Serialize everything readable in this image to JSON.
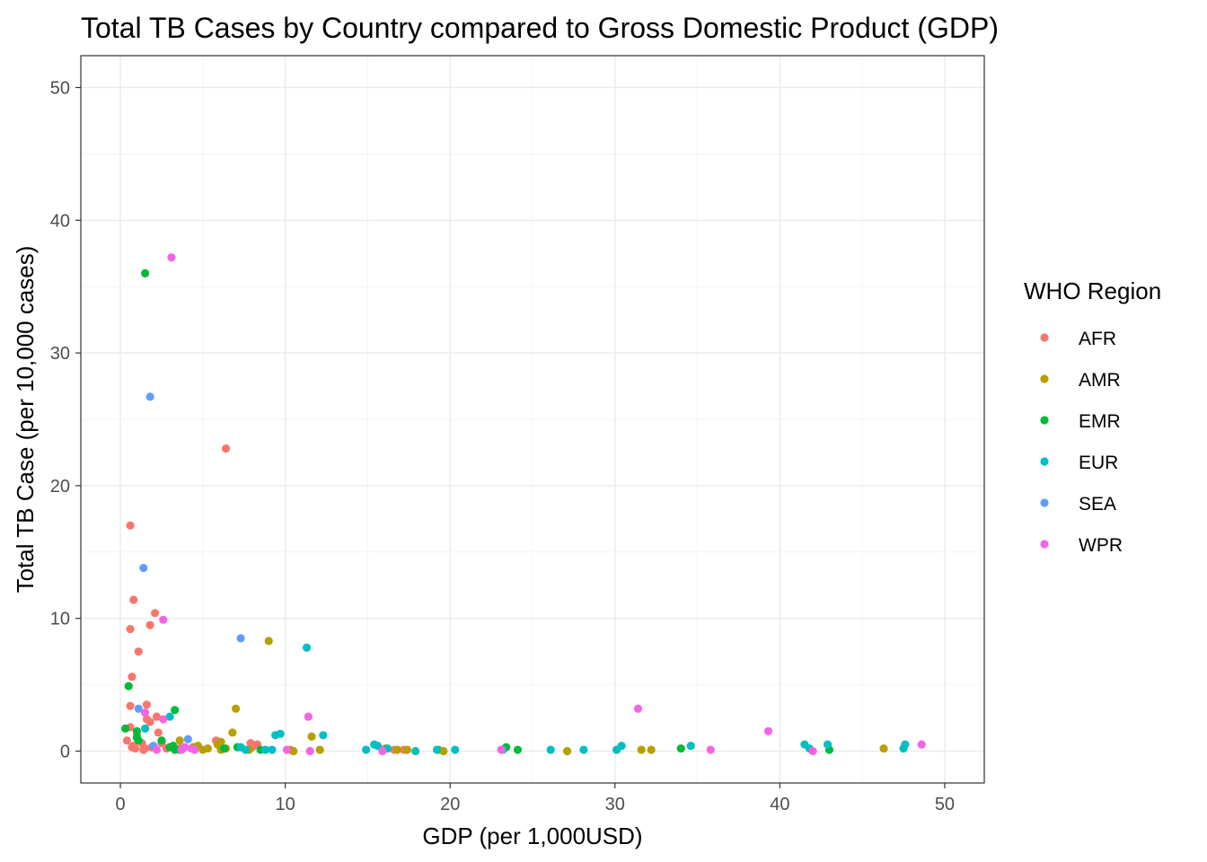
{
  "chart_data": {
    "type": "scatter",
    "title": "Total TB Cases by Country compared to Gross Domestic Product (GDP)",
    "xlabel": "GDP (per 1,000USD)",
    "ylabel": "Total TB Case (per 10,000 cases)",
    "xlim": [
      -2.4,
      52.4
    ],
    "ylim": [
      -2.4,
      52.4
    ],
    "xticks": [
      0,
      10,
      20,
      30,
      40,
      50
    ],
    "yticks": [
      0,
      10,
      20,
      30,
      40,
      50
    ],
    "grid": true,
    "legend": {
      "title": "WHO Region",
      "placement": "right"
    },
    "series": [
      {
        "name": "AFR",
        "color": "#F8766D",
        "points": [
          [
            0.6,
            17.0
          ],
          [
            6.4,
            22.8
          ],
          [
            0.8,
            11.4
          ],
          [
            2.1,
            10.4
          ],
          [
            1.8,
            9.5
          ],
          [
            0.6,
            9.2
          ],
          [
            1.1,
            7.5
          ],
          [
            0.7,
            5.6
          ],
          [
            1.6,
            3.5
          ],
          [
            0.6,
            3.4
          ],
          [
            2.2,
            2.6
          ],
          [
            1.6,
            2.4
          ],
          [
            1.8,
            2.2
          ],
          [
            0.6,
            1.8
          ],
          [
            2.3,
            1.4
          ],
          [
            1.0,
            1.2
          ],
          [
            0.4,
            0.8
          ],
          [
            2.5,
            0.6
          ],
          [
            1.3,
            0.6
          ],
          [
            0.8,
            0.4
          ],
          [
            1.9,
            0.3
          ],
          [
            0.7,
            0.3
          ],
          [
            2.8,
            0.2
          ],
          [
            1.5,
            0.2
          ],
          [
            3.6,
            0.2
          ],
          [
            5.8,
            0.8
          ],
          [
            7.9,
            0.6
          ],
          [
            8.3,
            0.5
          ],
          [
            8.0,
            0.3
          ],
          [
            16.1,
            0.2
          ],
          [
            15.9,
            0.1
          ],
          [
            16.6,
            0.1
          ],
          [
            17.2,
            0.1
          ],
          [
            0.9,
            0.2
          ],
          [
            1.4,
            0.1
          ]
        ]
      },
      {
        "name": "AMR",
        "color": "#B79F00",
        "points": [
          [
            9.0,
            8.3
          ],
          [
            7.0,
            3.2
          ],
          [
            6.8,
            1.4
          ],
          [
            11.6,
            1.1
          ],
          [
            3.6,
            0.8
          ],
          [
            6.1,
            0.7
          ],
          [
            5.9,
            0.5
          ],
          [
            4.7,
            0.4
          ],
          [
            4.4,
            0.3
          ],
          [
            5.3,
            0.2
          ],
          [
            6.4,
            0.2
          ],
          [
            6.1,
            0.1
          ],
          [
            7.6,
            0.1
          ],
          [
            7.8,
            0.1
          ],
          [
            10.3,
            0.1
          ],
          [
            10.5,
            0.0
          ],
          [
            12.1,
            0.1
          ],
          [
            16.1,
            0.2
          ],
          [
            16.8,
            0.1
          ],
          [
            17.4,
            0.1
          ],
          [
            19.3,
            0.1
          ],
          [
            19.6,
            0.0
          ],
          [
            27.1,
            0.0
          ],
          [
            31.6,
            0.1
          ],
          [
            32.2,
            0.1
          ],
          [
            46.3,
            0.2
          ],
          [
            3.8,
            0.2
          ],
          [
            5.0,
            0.1
          ]
        ]
      },
      {
        "name": "EMR",
        "color": "#00BA38",
        "points": [
          [
            1.5,
            36.0
          ],
          [
            0.5,
            4.9
          ],
          [
            3.3,
            3.1
          ],
          [
            0.3,
            1.7
          ],
          [
            1.0,
            1.5
          ],
          [
            1.0,
            1.0
          ],
          [
            1.1,
            0.8
          ],
          [
            3.2,
            0.4
          ],
          [
            2.5,
            0.8
          ],
          [
            3.0,
            0.3
          ],
          [
            3.3,
            0.1
          ],
          [
            7.1,
            0.3
          ],
          [
            6.3,
            0.2
          ],
          [
            8.5,
            0.1
          ],
          [
            23.4,
            0.3
          ],
          [
            24.1,
            0.1
          ],
          [
            34.0,
            0.2
          ],
          [
            43.0,
            0.1
          ],
          [
            3.6,
            0.1
          ]
        ]
      },
      {
        "name": "EUR",
        "color": "#00BFC4",
        "points": [
          [
            11.3,
            7.8
          ],
          [
            1.5,
            1.7
          ],
          [
            3.0,
            2.6
          ],
          [
            12.3,
            1.2
          ],
          [
            9.7,
            1.3
          ],
          [
            9.4,
            1.2
          ],
          [
            7.3,
            0.3
          ],
          [
            7.6,
            0.1
          ],
          [
            8.8,
            0.1
          ],
          [
            9.2,
            0.1
          ],
          [
            15.4,
            0.5
          ],
          [
            15.6,
            0.4
          ],
          [
            14.9,
            0.1
          ],
          [
            17.9,
            0.0
          ],
          [
            19.2,
            0.1
          ],
          [
            20.3,
            0.1
          ],
          [
            23.2,
            0.1
          ],
          [
            26.1,
            0.1
          ],
          [
            28.1,
            0.1
          ],
          [
            30.1,
            0.1
          ],
          [
            30.4,
            0.4
          ],
          [
            34.6,
            0.4
          ],
          [
            41.5,
            0.5
          ],
          [
            41.8,
            0.2
          ],
          [
            42.9,
            0.5
          ],
          [
            47.5,
            0.2
          ],
          [
            47.6,
            0.5
          ],
          [
            16.2,
            0.2
          ]
        ]
      },
      {
        "name": "SEA",
        "color": "#619CFF",
        "points": [
          [
            1.8,
            26.7
          ],
          [
            1.4,
            13.8
          ],
          [
            7.3,
            8.5
          ],
          [
            1.1,
            3.2
          ],
          [
            4.1,
            0.9
          ],
          [
            2.0,
            0.4
          ]
        ]
      },
      {
        "name": "WPR",
        "color": "#F564E3",
        "points": [
          [
            3.1,
            37.2
          ],
          [
            2.6,
            9.9
          ],
          [
            1.5,
            2.9
          ],
          [
            2.6,
            2.4
          ],
          [
            11.4,
            2.6
          ],
          [
            31.4,
            3.2
          ],
          [
            39.3,
            1.5
          ],
          [
            48.6,
            0.5
          ],
          [
            3.9,
            0.3
          ],
          [
            4.3,
            0.2
          ],
          [
            3.7,
            0.1
          ],
          [
            4.5,
            0.1
          ],
          [
            10.1,
            0.1
          ],
          [
            11.5,
            0.0
          ],
          [
            15.9,
            0.0
          ],
          [
            23.1,
            0.1
          ],
          [
            35.8,
            0.1
          ],
          [
            42.0,
            0.0
          ],
          [
            2.2,
            0.1
          ]
        ]
      }
    ]
  }
}
